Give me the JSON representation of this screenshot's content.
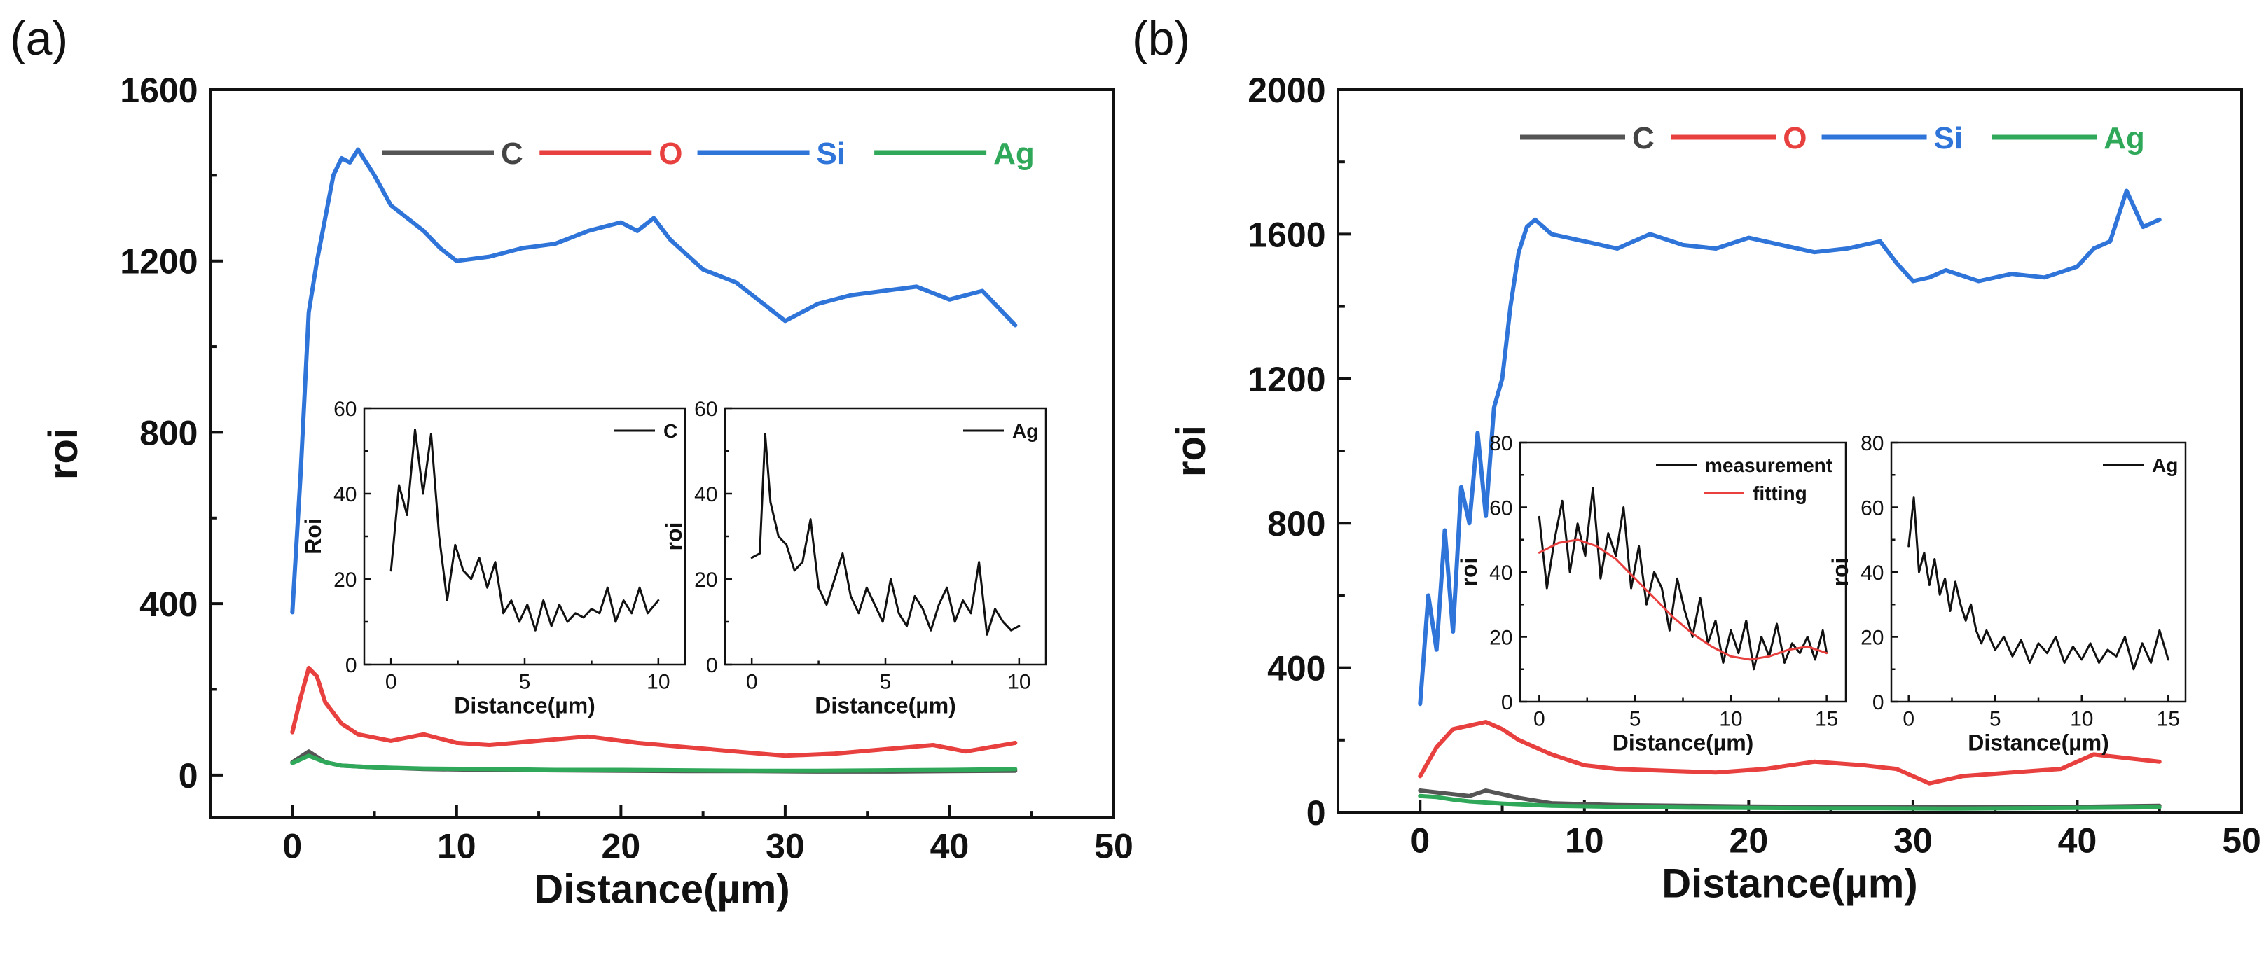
{
  "figure": {
    "panel_labels": [
      "(a)",
      "(b)"
    ]
  },
  "chart_data": [
    {
      "panel": "(a)",
      "type": "line",
      "title": "",
      "xlabel": "Distance(µm)",
      "ylabel": "roi",
      "xlim": [
        -5,
        50
      ],
      "ylim": [
        -100,
        1600
      ],
      "xticks": [
        0,
        10,
        20,
        30,
        40,
        50
      ],
      "yticks": [
        0,
        400,
        800,
        1200,
        1600
      ],
      "legend": "top-center",
      "series": [
        {
          "name": "C",
          "color": "#555555",
          "x": [
            0,
            1,
            2,
            3,
            5,
            8,
            12,
            16,
            20,
            24,
            28,
            32,
            36,
            40,
            44
          ],
          "y": [
            30,
            55,
            30,
            22,
            18,
            14,
            12,
            11,
            10,
            9,
            9,
            8,
            8,
            9,
            10
          ]
        },
        {
          "name": "O",
          "color": "#e8403f",
          "x": [
            0,
            0.5,
            1,
            1.5,
            2,
            3,
            4,
            6,
            8,
            10,
            12,
            15,
            18,
            21,
            24,
            27,
            30,
            33,
            36,
            39,
            41,
            44
          ],
          "y": [
            100,
            180,
            250,
            230,
            170,
            120,
            95,
            80,
            95,
            75,
            70,
            80,
            90,
            75,
            65,
            55,
            45,
            50,
            60,
            70,
            55,
            75
          ]
        },
        {
          "name": "Si",
          "color": "#2f74d9",
          "x": [
            0,
            0.5,
            1,
            1.5,
            2,
            2.5,
            3,
            3.5,
            4,
            5,
            6,
            7,
            8,
            9,
            10,
            12,
            14,
            16,
            18,
            20,
            21,
            22,
            23,
            25,
            27,
            28,
            29,
            30,
            32,
            34,
            36,
            38,
            40,
            42,
            44
          ],
          "y": [
            380,
            700,
            1080,
            1200,
            1300,
            1400,
            1440,
            1430,
            1460,
            1400,
            1330,
            1300,
            1270,
            1230,
            1200,
            1210,
            1230,
            1240,
            1270,
            1290,
            1270,
            1300,
            1250,
            1180,
            1150,
            1120,
            1090,
            1060,
            1100,
            1120,
            1130,
            1140,
            1110,
            1130,
            1050
          ]
        },
        {
          "name": "Ag",
          "color": "#2fa85a",
          "x": [
            0,
            1,
            2,
            3,
            5,
            8,
            12,
            16,
            20,
            24,
            28,
            32,
            36,
            40,
            44
          ],
          "y": [
            28,
            45,
            30,
            22,
            18,
            15,
            14,
            12,
            12,
            11,
            10,
            10,
            11,
            12,
            14
          ]
        }
      ],
      "insets": [
        {
          "name": "inset-a-left",
          "type": "line",
          "xlabel": "Distance(µm)",
          "ylabel": "Roi",
          "xlim": [
            -1,
            11
          ],
          "ylim": [
            0,
            60
          ],
          "xticks": [
            0,
            5,
            10
          ],
          "yticks": [
            0,
            20,
            40,
            60
          ],
          "legend": "top-right",
          "series": [
            {
              "name": "C",
              "color": "#111111",
              "x": [
                0,
                0.3,
                0.6,
                0.9,
                1.2,
                1.5,
                1.8,
                2.1,
                2.4,
                2.7,
                3.0,
                3.3,
                3.6,
                3.9,
                4.2,
                4.5,
                4.8,
                5.1,
                5.4,
                5.7,
                6.0,
                6.3,
                6.6,
                6.9,
                7.2,
                7.5,
                7.8,
                8.1,
                8.4,
                8.7,
                9.0,
                9.3,
                9.6,
                10
              ],
              "y": [
                22,
                42,
                35,
                55,
                40,
                54,
                30,
                15,
                28,
                22,
                20,
                25,
                18,
                24,
                12,
                15,
                10,
                14,
                8,
                15,
                9,
                14,
                10,
                12,
                11,
                13,
                12,
                18,
                10,
                15,
                12,
                18,
                12,
                15
              ]
            }
          ]
        },
        {
          "name": "inset-a-right",
          "type": "line",
          "xlabel": "Distance(µm)",
          "ylabel": "roi",
          "xlim": [
            -1,
            11
          ],
          "ylim": [
            0,
            60
          ],
          "xticks": [
            0,
            5,
            10
          ],
          "yticks": [
            0,
            20,
            40,
            60
          ],
          "legend": "top-right",
          "series": [
            {
              "name": "Ag",
              "color": "#111111",
              "x": [
                0,
                0.3,
                0.5,
                0.7,
                1.0,
                1.3,
                1.6,
                1.9,
                2.2,
                2.5,
                2.8,
                3.1,
                3.4,
                3.7,
                4.0,
                4.3,
                4.6,
                4.9,
                5.2,
                5.5,
                5.8,
                6.1,
                6.4,
                6.7,
                7.0,
                7.3,
                7.6,
                7.9,
                8.2,
                8.5,
                8.8,
                9.1,
                9.4,
                9.7,
                10
              ],
              "y": [
                25,
                26,
                54,
                38,
                30,
                28,
                22,
                24,
                34,
                18,
                14,
                20,
                26,
                16,
                12,
                18,
                14,
                10,
                20,
                12,
                9,
                16,
                13,
                8,
                14,
                18,
                10,
                15,
                12,
                24,
                7,
                13,
                10,
                8,
                9
              ]
            }
          ]
        }
      ]
    },
    {
      "panel": "(b)",
      "type": "line",
      "title": "",
      "xlabel": "Distance(µm)",
      "ylabel": "roi",
      "xlim": [
        -5,
        50
      ],
      "ylim": [
        0,
        2000
      ],
      "xticks": [
        0,
        10,
        20,
        30,
        40,
        50
      ],
      "yticks": [
        0,
        400,
        800,
        1200,
        1600,
        2000
      ],
      "legend": "top-center",
      "series": [
        {
          "name": "C",
          "color": "#555555",
          "x": [
            0,
            1,
            2,
            3,
            4,
            6,
            8,
            12,
            16,
            20,
            24,
            28,
            32,
            36,
            40,
            45
          ],
          "y": [
            60,
            55,
            50,
            45,
            60,
            40,
            25,
            20,
            18,
            16,
            15,
            15,
            14,
            14,
            15,
            18
          ]
        },
        {
          "name": "O",
          "color": "#e8403f",
          "x": [
            0,
            1,
            2,
            3,
            4,
            5,
            6,
            7,
            8,
            10,
            12,
            15,
            18,
            21,
            24,
            27,
            29,
            31,
            33,
            36,
            39,
            41,
            43,
            45
          ],
          "y": [
            100,
            180,
            230,
            240,
            250,
            230,
            200,
            180,
            160,
            130,
            120,
            115,
            110,
            120,
            140,
            130,
            120,
            80,
            100,
            110,
            120,
            160,
            150,
            140
          ]
        },
        {
          "name": "Si",
          "color": "#2f74d9",
          "x": [
            0,
            0.5,
            1,
            1.5,
            2,
            2.5,
            3,
            3.5,
            4,
            4.5,
            5,
            5.5,
            6,
            6.5,
            7,
            8,
            10,
            12,
            14,
            16,
            18,
            20,
            22,
            24,
            26,
            28,
            29,
            30,
            31,
            32,
            34,
            36,
            38,
            40,
            41,
            42,
            43,
            44,
            45
          ],
          "y": [
            300,
            600,
            450,
            780,
            500,
            900,
            800,
            1050,
            820,
            1120,
            1200,
            1400,
            1550,
            1620,
            1640,
            1600,
            1580,
            1560,
            1600,
            1570,
            1560,
            1590,
            1570,
            1550,
            1560,
            1580,
            1520,
            1470,
            1480,
            1500,
            1470,
            1490,
            1480,
            1510,
            1560,
            1580,
            1720,
            1620,
            1640
          ]
        },
        {
          "name": "Ag",
          "color": "#2fa85a",
          "x": [
            0,
            1,
            2,
            3,
            5,
            8,
            12,
            16,
            20,
            24,
            28,
            32,
            36,
            40,
            45
          ],
          "y": [
            45,
            42,
            35,
            30,
            24,
            18,
            15,
            13,
            12,
            11,
            11,
            10,
            11,
            12,
            14
          ]
        }
      ],
      "insets": [
        {
          "name": "inset-b-left",
          "type": "line",
          "xlabel": "Distance(µm)",
          "ylabel": "roi",
          "xlim": [
            -1,
            16
          ],
          "ylim": [
            0,
            80
          ],
          "xticks": [
            0,
            5,
            10,
            15
          ],
          "yticks": [
            0,
            20,
            40,
            60,
            80
          ],
          "legend": "top-right",
          "series": [
            {
              "name": "measurement",
              "color": "#111111",
              "x": [
                0,
                0.4,
                0.8,
                1.2,
                1.6,
                2.0,
                2.4,
                2.8,
                3.2,
                3.6,
                4.0,
                4.4,
                4.8,
                5.2,
                5.6,
                6.0,
                6.4,
                6.8,
                7.2,
                7.6,
                8.0,
                8.4,
                8.8,
                9.2,
                9.6,
                10.0,
                10.4,
                10.8,
                11.2,
                11.6,
                12.0,
                12.4,
                12.8,
                13.2,
                13.6,
                14.0,
                14.4,
                14.8,
                15
              ],
              "y": [
                57,
                35,
                50,
                62,
                40,
                55,
                45,
                66,
                38,
                52,
                45,
                60,
                35,
                48,
                30,
                40,
                35,
                22,
                38,
                28,
                20,
                32,
                18,
                25,
                12,
                22,
                15,
                25,
                10,
                20,
                14,
                24,
                12,
                18,
                15,
                20,
                13,
                22,
                15
              ]
            },
            {
              "name": "fitting",
              "color": "#e8403f",
              "x": [
                0,
                1,
                2,
                3,
                4,
                5,
                6,
                7,
                8,
                9,
                10,
                11,
                12,
                13,
                14,
                15
              ],
              "y": [
                46,
                49,
                50,
                48,
                44,
                38,
                32,
                26,
                21,
                17,
                14,
                13,
                14,
                16,
                17,
                15
              ]
            }
          ]
        },
        {
          "name": "inset-b-right",
          "type": "line",
          "xlabel": "Distance(µm)",
          "ylabel": "roi",
          "xlim": [
            -1,
            16
          ],
          "ylim": [
            0,
            80
          ],
          "xticks": [
            0,
            5,
            10,
            15
          ],
          "yticks": [
            0,
            20,
            40,
            60,
            80
          ],
          "legend": "top-right",
          "series": [
            {
              "name": "Ag",
              "color": "#111111",
              "x": [
                0,
                0.3,
                0.6,
                0.9,
                1.2,
                1.5,
                1.8,
                2.1,
                2.4,
                2.7,
                3.0,
                3.3,
                3.6,
                3.9,
                4.2,
                4.5,
                5.0,
                5.5,
                6.0,
                6.5,
                7.0,
                7.5,
                8.0,
                8.5,
                9.0,
                9.5,
                10.0,
                10.5,
                11.0,
                11.5,
                12.0,
                12.5,
                13.0,
                13.5,
                14.0,
                14.5,
                15
              ],
              "y": [
                48,
                63,
                40,
                46,
                36,
                44,
                33,
                38,
                28,
                37,
                30,
                25,
                30,
                22,
                18,
                22,
                16,
                20,
                14,
                19,
                12,
                18,
                15,
                20,
                12,
                17,
                13,
                18,
                12,
                16,
                14,
                20,
                10,
                18,
                12,
                22,
                13
              ]
            }
          ]
        }
      ]
    }
  ]
}
